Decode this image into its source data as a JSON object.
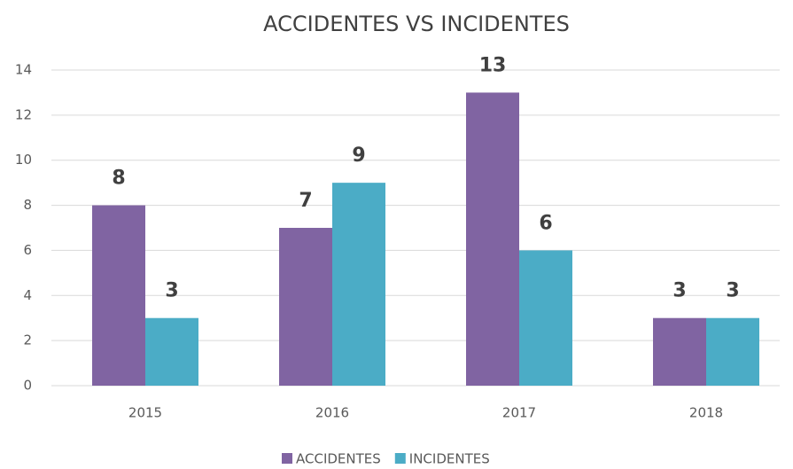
{
  "chart_data": {
    "type": "bar",
    "title": "ACCIDENTES VS INCIDENTES",
    "categories": [
      "2015",
      "2016",
      "2017",
      "2018"
    ],
    "series": [
      {
        "name": "ACCIDENTES",
        "color": "#8064a2",
        "values": [
          8,
          7,
          13,
          3
        ]
      },
      {
        "name": "INCIDENTES",
        "color": "#4bacc6",
        "values": [
          3,
          9,
          6,
          3
        ]
      }
    ],
    "ylim": [
      0,
      14
    ],
    "yticks": [
      0,
      2,
      4,
      6,
      8,
      10,
      12,
      14
    ],
    "grid": true,
    "legend": "bottom"
  }
}
